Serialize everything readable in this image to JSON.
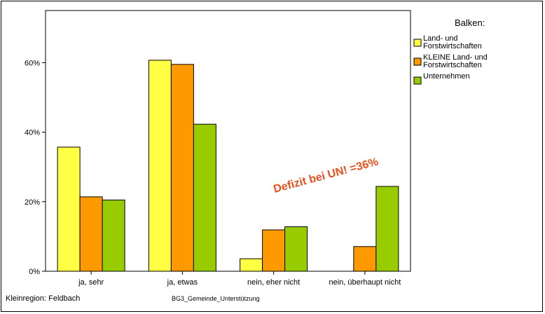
{
  "chart_data": {
    "type": "bar",
    "categories": [
      "ja, sehr",
      "ja, etwas",
      "nein, eher nicht",
      "nein, überhaupt nicht"
    ],
    "series": [
      {
        "name": "Land- und Forstwirtschaften",
        "legend_lines": [
          "Land- und",
          "Forstwirtschaften"
        ],
        "color": "#ffff44",
        "values": [
          35.7,
          60.7,
          3.6,
          0
        ]
      },
      {
        "name": "KLEINE Land- und Forstwirtschaften",
        "legend_lines": [
          "KLEINE Land- und",
          "Forstwirtschaften"
        ],
        "color": "#ff9900",
        "values": [
          21.4,
          59.5,
          11.9,
          7.1
        ]
      },
      {
        "name": "Unternehmen",
        "legend_lines": [
          "Unternehmen"
        ],
        "color": "#99cc00",
        "values": [
          20.5,
          42.3,
          12.8,
          24.4
        ]
      }
    ],
    "ylim": [
      0,
      75
    ],
    "yticks": [
      "0%",
      "20%",
      "40%",
      "60%"
    ],
    "ytick_values": [
      0,
      20,
      40,
      60
    ],
    "xlabel": "BG3_Gemeinde_Unterstützung",
    "legend_title": "Balken:",
    "legend_position": "right",
    "grid": false,
    "annotation": "Defizit bei UN! =36%",
    "footnote": "Kleinregion: Feldbach"
  }
}
